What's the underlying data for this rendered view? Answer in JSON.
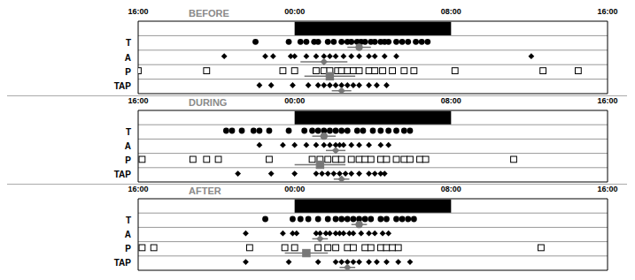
{
  "chart_data": [
    {
      "type": "scatter",
      "title": "BEFORE",
      "xlim": [
        16,
        40
      ],
      "xticks": [
        {
          "value": 16,
          "label": "16:00"
        },
        {
          "value": 24,
          "label": "00:00"
        },
        {
          "value": 32,
          "label": "08:00"
        },
        {
          "value": 40,
          "label": "16:00"
        }
      ],
      "night": [
        24,
        32
      ],
      "series": [
        {
          "name": "T",
          "marker": "circle",
          "color": "#000000",
          "mean": 27.3,
          "error": 0.6,
          "x": [
            22.0,
            23.7,
            24.3,
            24.6,
            25.0,
            25.2,
            25.7,
            26.0,
            26.4,
            26.7,
            26.9,
            27.2,
            27.4,
            27.6,
            27.9,
            28.1,
            28.4,
            28.6,
            28.8,
            29.2,
            29.5,
            29.8,
            30.2,
            30.5,
            30.8
          ]
        },
        {
          "name": "A",
          "marker": "diamond",
          "color": "#000000",
          "mean": 25.5,
          "error": 1.2,
          "x": [
            20.4,
            22.5,
            22.9,
            23.8,
            24.0,
            24.6,
            25.1,
            25.5,
            25.8,
            26.1,
            26.5,
            26.9,
            27.3,
            27.8,
            28.1,
            28.6,
            29.2,
            36.1
          ]
        },
        {
          "name": "P",
          "marker": "open_square",
          "color": "#000000",
          "mean": 25.8,
          "error": 1.3,
          "x": [
            16.0,
            19.5,
            23.4,
            24.0,
            25.1,
            25.5,
            25.8,
            26.2,
            26.4,
            26.7,
            27.0,
            27.3,
            27.8,
            28.1,
            28.5,
            29.0,
            29.6,
            30.1,
            32.2,
            36.7,
            38.5
          ]
        },
        {
          "name": "TAP",
          "marker": "diamond",
          "color": "#000000",
          "mean": 26.4,
          "error": 0.5,
          "x": [
            22.2,
            22.8,
            23.9,
            24.7,
            25.2,
            25.5,
            25.8,
            26.1,
            26.4,
            26.7,
            27.0,
            27.3,
            27.8,
            28.2,
            28.7
          ]
        }
      ]
    },
    {
      "type": "scatter",
      "title": "DURING",
      "xlim": [
        16,
        40
      ],
      "xticks": [
        {
          "value": 16,
          "label": "16:00"
        },
        {
          "value": 24,
          "label": "00:00"
        },
        {
          "value": 32,
          "label": "08:00"
        },
        {
          "value": 40,
          "label": "16:00"
        }
      ],
      "night": [
        24,
        32
      ],
      "series": [
        {
          "name": "T",
          "marker": "circle",
          "color": "#000000",
          "mean": 25.5,
          "error": 0.6,
          "x": [
            20.5,
            20.8,
            21.3,
            21.9,
            22.2,
            22.7,
            23.7,
            24.5,
            24.9,
            25.2,
            25.5,
            25.8,
            26.1,
            26.4,
            26.7,
            27.2,
            27.5,
            28.0,
            28.4,
            28.8,
            29.2,
            29.6,
            29.9
          ]
        },
        {
          "name": "A",
          "marker": "diamond",
          "color": "#000000",
          "mean": 26.1,
          "error": 0.5,
          "x": [
            22.2,
            23.4,
            24.0,
            24.6,
            25.1,
            25.5,
            25.8,
            26.1,
            26.3,
            26.5,
            26.9,
            27.3,
            27.8,
            28.4,
            28.8
          ]
        },
        {
          "name": "P",
          "marker": "open_square",
          "color": "#000000",
          "mean": 25.3,
          "error": 1.3,
          "x": [
            16.2,
            18.8,
            19.5,
            20.1,
            22.7,
            24.9,
            25.3,
            25.7,
            26.1,
            26.4,
            26.9,
            27.3,
            27.6,
            27.9,
            28.4,
            28.7,
            29.2,
            29.6,
            29.9,
            30.4,
            30.7,
            35.2
          ]
        },
        {
          "name": "TAP",
          "marker": "diamond",
          "color": "#000000",
          "mean": 26.4,
          "error": 0.4,
          "x": [
            21.1,
            22.8,
            24.0,
            25.1,
            25.4,
            25.7,
            26.0,
            26.3,
            26.6,
            26.9,
            27.3,
            27.8,
            28.1,
            28.4,
            28.6
          ]
        }
      ]
    },
    {
      "type": "scatter",
      "title": "AFTER",
      "xlim": [
        16,
        40
      ],
      "xticks": [
        {
          "value": 16,
          "label": "16:00"
        },
        {
          "value": 24,
          "label": "00:00"
        },
        {
          "value": 32,
          "label": "08:00"
        },
        {
          "value": 40,
          "label": "16:00"
        }
      ],
      "night": [
        24,
        32
      ],
      "series": [
        {
          "name": "T",
          "marker": "circle",
          "color": "#000000",
          "mean": 27.3,
          "error": 0.4,
          "x": [
            22.5,
            23.9,
            24.3,
            24.7,
            25.2,
            25.7,
            26.1,
            26.4,
            26.7,
            27.0,
            27.3,
            27.6,
            27.9,
            28.4,
            28.7,
            29.2,
            29.5,
            29.8,
            30.1
          ]
        },
        {
          "name": "A",
          "marker": "diamond",
          "color": "#000000",
          "mean": 25.3,
          "error": 0.4,
          "x": [
            21.5,
            23.4,
            23.9,
            24.1,
            25.1,
            25.3,
            25.6,
            25.8,
            26.1,
            26.3,
            26.5,
            26.8,
            27.0,
            27.4,
            27.8,
            28.1,
            28.5,
            28.8
          ]
        },
        {
          "name": "P",
          "marker": "open_square",
          "color": "#000000",
          "mean": 24.6,
          "error": 1.1,
          "x": [
            16.2,
            16.8,
            21.7,
            23.5,
            24.0,
            25.2,
            25.7,
            26.1,
            26.7,
            27.0,
            27.6,
            27.9,
            28.4,
            28.7,
            29.0,
            29.3,
            36.6
          ]
        },
        {
          "name": "TAP",
          "marker": "diamond",
          "color": "#000000",
          "mean": 26.7,
          "error": 0.4,
          "x": [
            21.5,
            23.7,
            25.2,
            26.1,
            26.4,
            26.7,
            27.0,
            27.3,
            27.8,
            28.2,
            28.7,
            29.3,
            29.9
          ]
        }
      ]
    }
  ]
}
